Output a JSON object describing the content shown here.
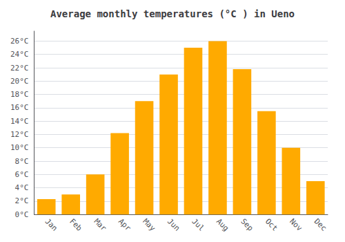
{
  "chart_data": {
    "type": "bar",
    "title": "Average monthly temperatures (°C ) in Ueno",
    "categories": [
      "Jan",
      "Feb",
      "Mar",
      "Apr",
      "May",
      "Jun",
      "Jul",
      "Aug",
      "Sep",
      "Oct",
      "Nov",
      "Dec"
    ],
    "values": [
      2.3,
      3.0,
      6.0,
      12.2,
      17.0,
      21.0,
      25.0,
      26.0,
      21.8,
      15.5,
      10.0,
      5.0
    ],
    "color": "#FFAA00",
    "ylim": [
      0,
      27.5
    ],
    "yticks": [
      {
        "value": 0,
        "label": "0°C"
      },
      {
        "value": 2,
        "label": "2°C"
      },
      {
        "value": 4,
        "label": "4°C"
      },
      {
        "value": 6,
        "label": "6°C"
      },
      {
        "value": 8,
        "label": "8°C"
      },
      {
        "value": 10,
        "label": "10°C"
      },
      {
        "value": 12,
        "label": "12°C"
      },
      {
        "value": 14,
        "label": "14°C"
      },
      {
        "value": 16,
        "label": "16°C"
      },
      {
        "value": 18,
        "label": "18°C"
      },
      {
        "value": 20,
        "label": "20°C"
      },
      {
        "value": 22,
        "label": "22°C"
      },
      {
        "value": 24,
        "label": "24°C"
      },
      {
        "value": 26,
        "label": "26°C"
      }
    ],
    "grid": true
  }
}
